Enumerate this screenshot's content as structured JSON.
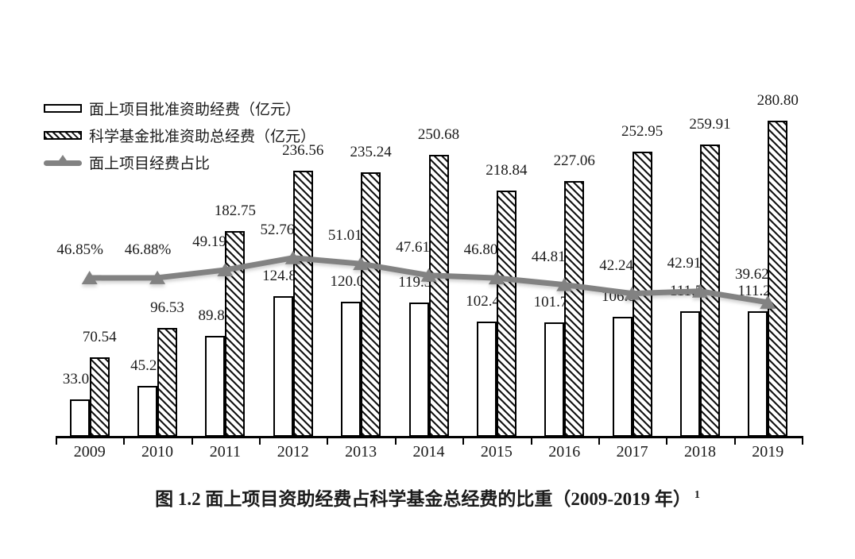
{
  "figure": {
    "caption": "图 1.2 面上项目资助经费占科学基金总经费的比重（2009-2019 年）",
    "caption_superscript": "1"
  },
  "legend": {
    "position": "top-left",
    "items": [
      {
        "swatch": "white-bar-swatch",
        "label": "面上项目批准资助经费（亿元）"
      },
      {
        "swatch": "hatched-bar-swatch",
        "label": "科学基金批准资助总经费（亿元）"
      },
      {
        "swatch": "gray-line-swatch",
        "label": "面上项目经费占比"
      }
    ]
  },
  "colors": {
    "background": "#ffffff",
    "bar_fill": "#ffffff",
    "bar_border": "#000000",
    "hatch": "#141414",
    "line": "#828282",
    "text": "#1b1b1b"
  },
  "chart_data": {
    "type": "bar",
    "subtype": "grouped-bars-with-line-overlay",
    "title": "",
    "xlabel": "",
    "ylabel": "",
    "categories": [
      "2009",
      "2010",
      "2011",
      "2012",
      "2013",
      "2014",
      "2015",
      "2016",
      "2017",
      "2018",
      "2019"
    ],
    "series": [
      {
        "name": "面上项目批准资助经费（亿元）",
        "type": "bar",
        "fill": "white",
        "values": [
          33.05,
          45.25,
          89.89,
          124.8,
          120.0,
          119.35,
          102.41,
          101.75,
          106.85,
          111.52,
          111.26
        ],
        "labels": [
          "33.05",
          "45.25",
          "89.89",
          "124.80",
          "120.00",
          "119.35",
          "102.41",
          "101.75",
          "106.85",
          "111.52",
          "111.26"
        ]
      },
      {
        "name": "科学基金批准资助总经费（亿元）",
        "type": "bar",
        "fill": "diagonal-hatch",
        "values": [
          70.54,
          96.53,
          182.75,
          236.56,
          235.24,
          250.68,
          218.84,
          227.06,
          252.95,
          259.91,
          280.8
        ],
        "labels": [
          "70.54",
          "96.53",
          "182.75",
          "236.56",
          "235.24",
          "250.68",
          "218.84",
          "227.06",
          "252.95",
          "259.91",
          "280.80"
        ]
      },
      {
        "name": "面上项目经费占比",
        "type": "line",
        "color": "#828282",
        "marker": "triangle-up",
        "values": [
          46.85,
          46.88,
          49.19,
          52.76,
          51.01,
          47.61,
          46.8,
          44.81,
          42.24,
          42.91,
          39.62
        ],
        "labels": [
          "46.85%",
          "46.88%",
          "49.19%",
          "52.76%",
          "51.01%",
          "47.61%",
          "46.80%",
          "44.81%",
          "42.24%",
          "42.91%",
          "39.62%"
        ]
      }
    ],
    "ylim_estimated": [
      0,
      310
    ],
    "y_axis_visible": false,
    "x_axis_visible": true,
    "gridlines": false,
    "value_labels_shown": true,
    "legend_position": "top-left"
  }
}
